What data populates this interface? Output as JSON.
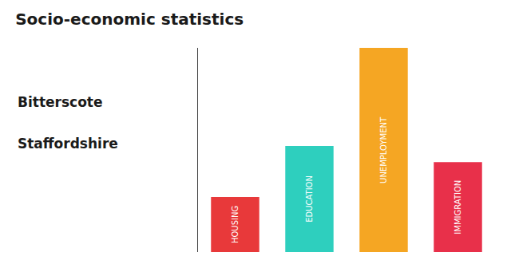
{
  "chart_data": {
    "type": "bar",
    "title": "Socio-economic statistics",
    "subtitle": [
      "Bitterscote",
      "Staffordshire"
    ],
    "categories": [
      "HOUSING",
      "EDUCATION",
      "UNEMPLOYMENT",
      "IMMIGRATION"
    ],
    "values": [
      0.27,
      0.52,
      1.0,
      0.44
    ],
    "colors": [
      "#E8393A",
      "#2ECFBE",
      "#F5A623",
      "#E8304A"
    ],
    "ylim": [
      0,
      1
    ],
    "grid": false,
    "tick_labels": false,
    "data_labels": false
  }
}
